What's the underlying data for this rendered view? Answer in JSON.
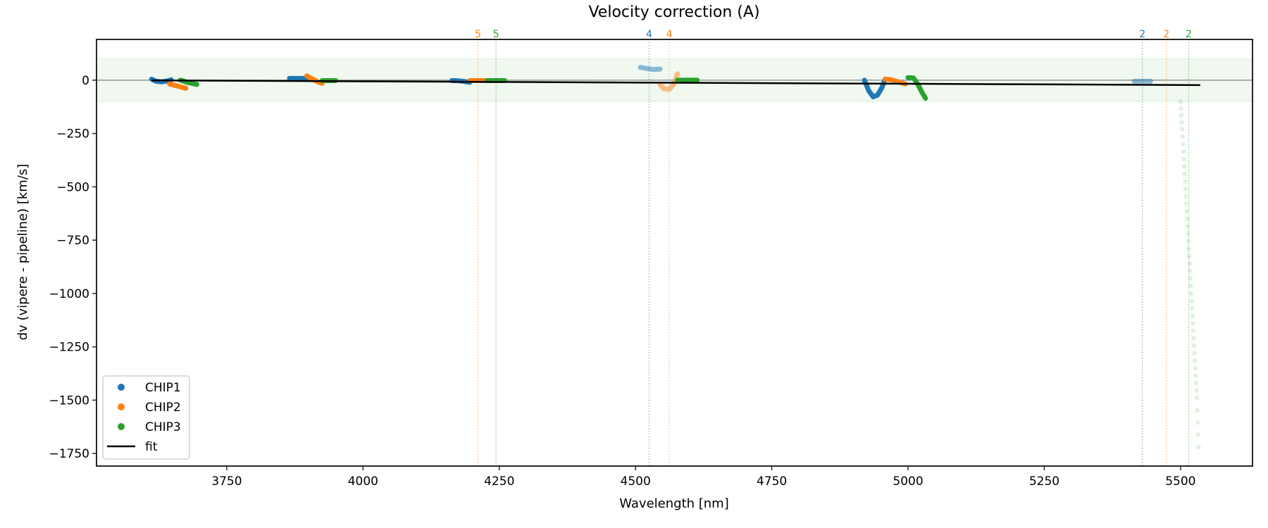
{
  "chart_data": {
    "type": "scatter",
    "title": "Velocity correction (A)",
    "xlabel": "Wavelength [nm]",
    "ylabel": "dv (vipere - pipeline) [km/s]",
    "xlim": [
      3511,
      5632
    ],
    "ylim": [
      -1809,
      191
    ],
    "grid": false,
    "x_ticks": [
      3750,
      4000,
      4250,
      4500,
      4750,
      5000,
      5250,
      5500
    ],
    "y_ticks": [
      0,
      -250,
      -500,
      -750,
      -1000,
      -1250,
      -1500,
      -1750
    ],
    "x_tick_labels": [
      "3750",
      "4000",
      "4250",
      "4500",
      "4750",
      "5000",
      "5250",
      "5500"
    ],
    "y_tick_labels": [
      "0",
      "−250",
      "−500",
      "−750",
      "−1000",
      "−1250",
      "−1500",
      "−1750"
    ],
    "tolerance_band": [
      -100,
      100
    ],
    "zero_line": 0,
    "legend_position": "lower-left",
    "legend": [
      {
        "label": "CHIP1",
        "kind": "marker",
        "color": "#1f77b4"
      },
      {
        "label": "CHIP2",
        "kind": "marker",
        "color": "#ff7f0e"
      },
      {
        "label": "CHIP3",
        "kind": "marker",
        "color": "#2ca02c"
      },
      {
        "label": "fit",
        "kind": "line",
        "color": "#000000"
      }
    ],
    "fit": {
      "x": [
        3612,
        5536
      ],
      "y": [
        -1,
        -23
      ]
    },
    "vlines": [
      {
        "x": 4211,
        "label": "5",
        "color": "#ff7f0e"
      },
      {
        "x": 4244,
        "label": "5",
        "color": "#2ca02c"
      },
      {
        "x": 4525,
        "label": "4",
        "color": "#1f77b4"
      },
      {
        "x": 4562,
        "label": "4",
        "color": "#ff7f0e"
      },
      {
        "x": 5430,
        "label": "2",
        "color": "#1f77b4"
      },
      {
        "x": 5474,
        "label": "2",
        "color": "#ff7f0e"
      },
      {
        "x": 5515,
        "label": "2",
        "color": "#2ca02c"
      }
    ],
    "series": [
      {
        "name": "CHIP1",
        "color": "#1f77b4",
        "segments": [
          {
            "alpha": 1.0,
            "x": [
              3612,
              3620,
              3630,
              3640,
              3648
            ],
            "y": [
              5,
              -5,
              -8,
              -4,
              2
            ]
          },
          {
            "alpha": 1.0,
            "x": [
              3865,
              3880,
              3895,
              3905
            ],
            "y": [
              8,
              8,
              8,
              8
            ]
          },
          {
            "alpha": 1.0,
            "x": [
              4163,
              4175,
              4185,
              4196
            ],
            "y": [
              -2,
              -3,
              -6,
              -10
            ]
          },
          {
            "alpha": 0.5,
            "x": [
              4509,
              4520,
              4532,
              4545
            ],
            "y": [
              60,
              55,
              50,
              52
            ]
          },
          {
            "alpha": 1.0,
            "x": [
              4920,
              4928,
              4936,
              4944,
              4952,
              4958
            ],
            "y": [
              0,
              -50,
              -78,
              -70,
              -35,
              5
            ]
          },
          {
            "alpha": 0.5,
            "x": [
              5415,
              5425,
              5435,
              5445
            ],
            "y": [
              -5,
              -5,
              -5,
              -5
            ]
          }
        ]
      },
      {
        "name": "CHIP2",
        "color": "#ff7f0e",
        "segments": [
          {
            "alpha": 1.0,
            "x": [
              3645,
              3660,
              3675
            ],
            "y": [
              -18,
              -28,
              -38
            ]
          },
          {
            "alpha": 1.0,
            "x": [
              3897,
              3907,
              3917,
              3925
            ],
            "y": [
              20,
              5,
              -8,
              -15
            ]
          },
          {
            "alpha": 1.0,
            "x": [
              4196,
              4210,
              4228
            ],
            "y": [
              -2,
              -2,
              -2
            ]
          },
          {
            "alpha": 0.5,
            "x": [
              4545,
              4552,
              4562,
              4570,
              4577
            ],
            "y": [
              -20,
              -40,
              -43,
              -20,
              30
            ]
          },
          {
            "alpha": 1.0,
            "x": [
              4958,
              4970,
              4982,
              4995
            ],
            "y": [
              5,
              2,
              -8,
              -18
            ]
          }
        ]
      },
      {
        "name": "CHIP3",
        "color": "#2ca02c",
        "segments": [
          {
            "alpha": 1.0,
            "x": [
              3665,
              3680,
              3695
            ],
            "y": [
              0,
              -12,
              -20
            ]
          },
          {
            "alpha": 1.0,
            "x": [
              3925,
              3937,
              3950
            ],
            "y": [
              -2,
              -2,
              -2
            ]
          },
          {
            "alpha": 1.0,
            "x": [
              4228,
              4244,
              4260
            ],
            "y": [
              -2,
              -2,
              -2
            ]
          },
          {
            "alpha": 1.0,
            "x": [
              4577,
              4595,
              4613
            ],
            "y": [
              0,
              0,
              0
            ]
          },
          {
            "alpha": 1.0,
            "x": [
              5000,
              5010,
              5018,
              5025,
              5032
            ],
            "y": [
              12,
              10,
              -20,
              -55,
              -85
            ]
          },
          {
            "alpha": 0.15,
            "dotted": true,
            "x": [
              5500,
              5503,
              5506,
              5509,
              5512,
              5515,
              5518,
              5521,
              5524,
              5527,
              5530,
              5533
            ],
            "y": [
              -100,
              -230,
              -370,
              -510,
              -650,
              -790,
              -930,
              -1070,
              -1210,
              -1350,
              -1490,
              -1720
            ]
          }
        ]
      }
    ]
  }
}
